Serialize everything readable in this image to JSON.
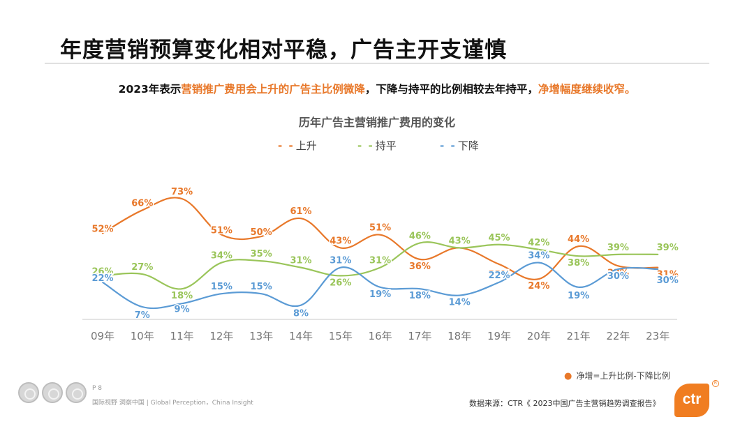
{
  "page": {
    "title": "年度营销预算变化相对平稳，广告主开支谨慎",
    "subtitle": {
      "part1": "2023年表示",
      "highlight1": "营销推广费用会上升的广告主比例微降",
      "part2": "，下降与持平的比例相较去年持平，",
      "highlight2": "净增幅度继续收窄。"
    },
    "note": "净增=上升比例-下降比例",
    "page_number": "P 8",
    "tagline": "国际视野  洞察中国 |  Global Perception，China Insight",
    "source": "数据来源：CTR《 2023中国广告主营销趋势调查报告》",
    "logo_text": "ctr",
    "logo_mark": "R"
  },
  "colors": {
    "up": "#e8782a",
    "flat": "#9ac55a",
    "down": "#5b9bd5",
    "axis": "#c8c8c8",
    "tick": "#777777"
  },
  "chart_data": {
    "type": "line",
    "title": "历年广告主营销推广费用的变化",
    "categories": [
      "09年",
      "10年",
      "11年",
      "12年",
      "13年",
      "14年",
      "15年",
      "16年",
      "17年",
      "18年",
      "19年",
      "20年",
      "21年",
      "22年",
      "23年"
    ],
    "ylim": [
      0,
      85
    ],
    "grid": false,
    "legend_position": "top",
    "series": [
      {
        "name": "上升",
        "key": "up",
        "values": [
          52,
          66,
          73,
          51,
          50,
          61,
          43,
          51,
          36,
          43,
          33,
          24,
          44,
          32,
          31
        ]
      },
      {
        "name": "持平",
        "key": "flat",
        "values": [
          26,
          27,
          18,
          34,
          35,
          31,
          26,
          31,
          46,
          43,
          45,
          42,
          38,
          39,
          39
        ]
      },
      {
        "name": "下降",
        "key": "down",
        "values": [
          22,
          7,
          9,
          15,
          15,
          8,
          31,
          19,
          18,
          14,
          22,
          34,
          19,
          30,
          30
        ]
      }
    ],
    "value_suffix": "%"
  }
}
